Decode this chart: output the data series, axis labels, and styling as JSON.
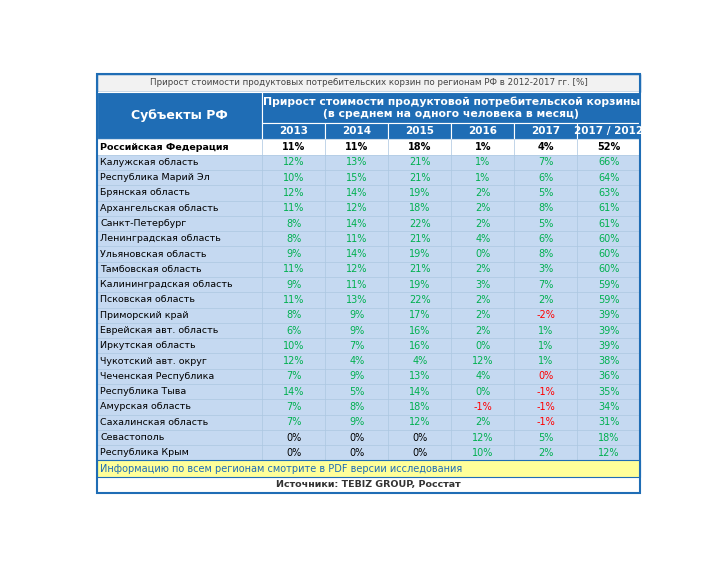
{
  "title": "Прирост стоимости продуктовых потребительских корзин по регионам РФ в 2012-2017 гг. [%]",
  "header_col": "Субъекты РФ",
  "header_main": "Прирост стоимости продуктовой потребительской корзины\n(в среднем на одного человека в месяц)",
  "col_years": [
    "2013",
    "2014",
    "2015",
    "2016",
    "2017",
    "2017 / 2012"
  ],
  "source": "Источники: TEBIZ GROUP, Росстат",
  "footer_note": "Информацию по всем регионам смотрите в PDF версии исследования",
  "rows": [
    {
      "region": "Российская Федерация",
      "values": [
        "11%",
        "11%",
        "18%",
        "1%",
        "4%",
        "52%"
      ],
      "bold": true,
      "colors": [
        "k",
        "k",
        "k",
        "k",
        "k",
        "k"
      ]
    },
    {
      "region": "Калужская область",
      "values": [
        "12%",
        "13%",
        "21%",
        "1%",
        "7%",
        "66%"
      ],
      "bold": false,
      "colors": [
        "g",
        "g",
        "g",
        "g",
        "g",
        "g"
      ]
    },
    {
      "region": "Республика Марий Эл",
      "values": [
        "10%",
        "15%",
        "21%",
        "1%",
        "6%",
        "64%"
      ],
      "bold": false,
      "colors": [
        "g",
        "g",
        "g",
        "g",
        "g",
        "g"
      ]
    },
    {
      "region": "Брянская область",
      "values": [
        "12%",
        "14%",
        "19%",
        "2%",
        "5%",
        "63%"
      ],
      "bold": false,
      "colors": [
        "g",
        "g",
        "g",
        "g",
        "g",
        "g"
      ]
    },
    {
      "region": "Архангельская область",
      "values": [
        "11%",
        "12%",
        "18%",
        "2%",
        "8%",
        "61%"
      ],
      "bold": false,
      "colors": [
        "g",
        "g",
        "g",
        "g",
        "g",
        "g"
      ]
    },
    {
      "region": "Санкт-Петербург",
      "values": [
        "8%",
        "14%",
        "22%",
        "2%",
        "5%",
        "61%"
      ],
      "bold": false,
      "colors": [
        "g",
        "g",
        "g",
        "g",
        "g",
        "g"
      ]
    },
    {
      "region": "Ленинградская область",
      "values": [
        "8%",
        "11%",
        "21%",
        "4%",
        "6%",
        "60%"
      ],
      "bold": false,
      "colors": [
        "g",
        "g",
        "g",
        "g",
        "g",
        "g"
      ]
    },
    {
      "region": "Ульяновская область",
      "values": [
        "9%",
        "14%",
        "19%",
        "0%",
        "8%",
        "60%"
      ],
      "bold": false,
      "colors": [
        "g",
        "g",
        "g",
        "g",
        "g",
        "g"
      ]
    },
    {
      "region": "Тамбовская область",
      "values": [
        "11%",
        "12%",
        "21%",
        "2%",
        "3%",
        "60%"
      ],
      "bold": false,
      "colors": [
        "g",
        "g",
        "g",
        "g",
        "g",
        "g"
      ]
    },
    {
      "region": "Калининградская область",
      "values": [
        "9%",
        "11%",
        "19%",
        "3%",
        "7%",
        "59%"
      ],
      "bold": false,
      "colors": [
        "g",
        "g",
        "g",
        "g",
        "g",
        "g"
      ]
    },
    {
      "region": "Псковская область",
      "values": [
        "11%",
        "13%",
        "22%",
        "2%",
        "2%",
        "59%"
      ],
      "bold": false,
      "colors": [
        "g",
        "g",
        "g",
        "g",
        "g",
        "g"
      ]
    },
    {
      "region": "Приморский край",
      "values": [
        "8%",
        "9%",
        "17%",
        "2%",
        "-2%",
        "39%"
      ],
      "bold": false,
      "colors": [
        "g",
        "g",
        "g",
        "g",
        "r",
        "g"
      ]
    },
    {
      "region": "Еврейская авт. область",
      "values": [
        "6%",
        "9%",
        "16%",
        "2%",
        "1%",
        "39%"
      ],
      "bold": false,
      "colors": [
        "g",
        "g",
        "g",
        "g",
        "g",
        "g"
      ]
    },
    {
      "region": "Иркутская область",
      "values": [
        "10%",
        "7%",
        "16%",
        "0%",
        "1%",
        "39%"
      ],
      "bold": false,
      "colors": [
        "g",
        "g",
        "g",
        "g",
        "g",
        "g"
      ]
    },
    {
      "region": "Чукотский авт. округ",
      "values": [
        "12%",
        "4%",
        "4%",
        "12%",
        "1%",
        "38%"
      ],
      "bold": false,
      "colors": [
        "g",
        "g",
        "g",
        "g",
        "g",
        "g"
      ]
    },
    {
      "region": "Чеченская Республика",
      "values": [
        "7%",
        "9%",
        "13%",
        "4%",
        "0%",
        "36%"
      ],
      "bold": false,
      "colors": [
        "g",
        "g",
        "g",
        "g",
        "r",
        "g"
      ]
    },
    {
      "region": "Республика Тыва",
      "values": [
        "14%",
        "5%",
        "14%",
        "0%",
        "-1%",
        "35%"
      ],
      "bold": false,
      "colors": [
        "g",
        "g",
        "g",
        "g",
        "r",
        "g"
      ]
    },
    {
      "region": "Амурская область",
      "values": [
        "7%",
        "8%",
        "18%",
        "-1%",
        "-1%",
        "34%"
      ],
      "bold": false,
      "colors": [
        "g",
        "g",
        "g",
        "r",
        "r",
        "g"
      ]
    },
    {
      "region": "Сахалинская область",
      "values": [
        "7%",
        "9%",
        "12%",
        "2%",
        "-1%",
        "31%"
      ],
      "bold": false,
      "colors": [
        "g",
        "g",
        "g",
        "g",
        "r",
        "g"
      ]
    },
    {
      "region": "Севастополь",
      "values": [
        "0%",
        "0%",
        "0%",
        "12%",
        "5%",
        "18%"
      ],
      "bold": false,
      "colors": [
        "k",
        "k",
        "k",
        "g",
        "g",
        "g"
      ]
    },
    {
      "region": "Республика Крым",
      "values": [
        "0%",
        "0%",
        "0%",
        "10%",
        "2%",
        "12%"
      ],
      "bold": false,
      "colors": [
        "k",
        "k",
        "k",
        "g",
        "g",
        "g"
      ]
    }
  ],
  "color_green": "#00B050",
  "color_red": "#FF0000",
  "color_header_bg": "#1F6DB5",
  "color_header_text": "#FFFFFF",
  "color_row_bg": "#C5D9F1",
  "color_border_h": "#FFFFFF",
  "color_border_d": "#A8C4E0",
  "color_footer_bg": "#FFFF99",
  "color_footer_text": "#1F6DB5",
  "color_title_bg": "#F2F2F2",
  "color_border_outer": "#1F6DB5",
  "color_source_text": "#333333"
}
